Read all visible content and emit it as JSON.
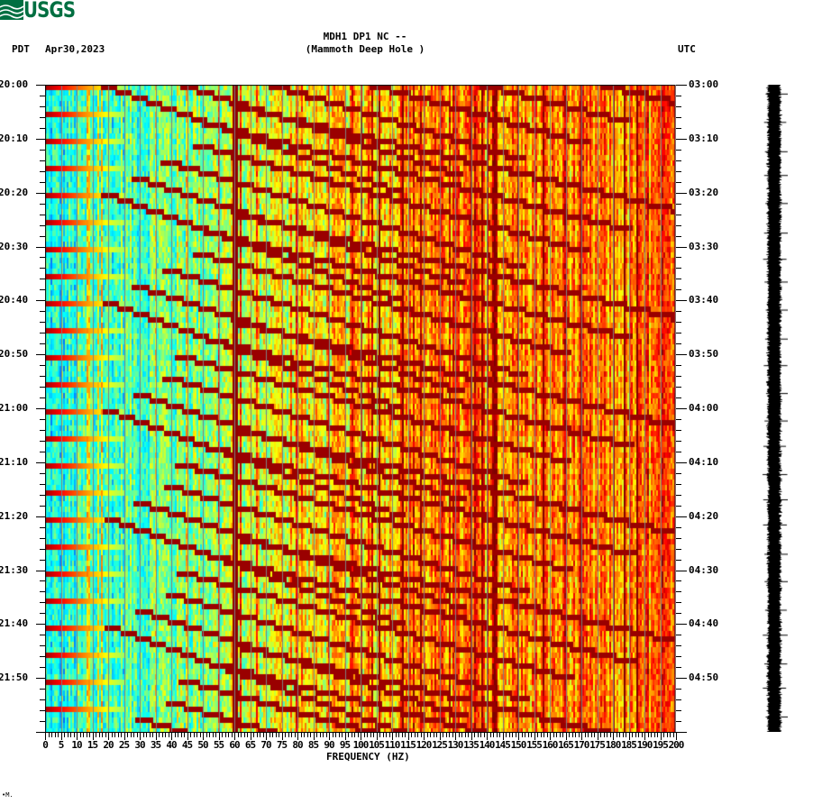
{
  "header": {
    "logo_text": "USGS",
    "station": "MDH1 DP1 NC --",
    "location": "(Mammoth Deep Hole )",
    "timezone_left": "PDT",
    "date": "Apr30,2023",
    "timezone_right": "UTC"
  },
  "colors": {
    "logo_green": "#006f41",
    "colormap": [
      "#0000ff",
      "#00a0ff",
      "#00ffff",
      "#80ff80",
      "#ffff00",
      "#ff8000",
      "#ff0000",
      "#800000"
    ],
    "grid_line": "#808080"
  },
  "footer": {
    "corner_mark": "•M."
  },
  "chart_data": {
    "type": "heatmap",
    "title": "MDH1 DP1 NC -- (Mammoth Deep Hole )",
    "subtitle": "Apr30,2023",
    "xlabel": "FREQUENCY (HZ)",
    "ylabel_left": "PDT",
    "ylabel_right": "UTC",
    "xlim": [
      0,
      200
    ],
    "x_ticks": [
      0,
      5,
      10,
      15,
      20,
      25,
      30,
      35,
      40,
      45,
      50,
      55,
      60,
      65,
      70,
      75,
      80,
      85,
      90,
      95,
      100,
      105,
      110,
      115,
      120,
      125,
      130,
      135,
      140,
      145,
      150,
      155,
      160,
      165,
      170,
      175,
      180,
      185,
      190,
      195,
      200
    ],
    "x_tick_labels": [
      "0",
      "5",
      "10",
      "15",
      "20",
      "25",
      "30",
      "35",
      "40",
      "45",
      "50",
      "55",
      "60",
      "65",
      "70",
      "75",
      "80",
      "85",
      "90",
      "95",
      "100",
      "105",
      "110",
      "115",
      "120",
      "125",
      "130",
      "135",
      "140",
      "145",
      "150",
      "155",
      "160",
      "165",
      "170",
      "175",
      "180",
      "185",
      "190",
      "195",
      "200"
    ],
    "y_ticks_left": [
      "20:00",
      "20:10",
      "20:20",
      "20:30",
      "20:40",
      "20:50",
      "21:00",
      "21:10",
      "21:20",
      "21:30",
      "21:40",
      "21:50"
    ],
    "y_ticks_right": [
      "03:00",
      "03:10",
      "03:20",
      "03:30",
      "03:40",
      "03:50",
      "04:00",
      "04:10",
      "04:20",
      "04:30",
      "04:40",
      "04:50"
    ],
    "time_range_minutes": 120,
    "minor_tick_interval_minutes": 2,
    "features": {
      "persistent_line_hz": [
        60,
        180
      ],
      "horizontal_bursts_every_minutes": 5,
      "chirp_sweep_period_minutes": 20,
      "chirp_start_hz": 20,
      "low_freq_color": "blue/cyan",
      "high_freq_color": "yellow/orange"
    },
    "legend": null,
    "grid": false
  }
}
